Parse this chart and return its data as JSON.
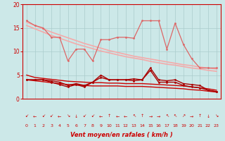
{
  "x": [
    0,
    1,
    2,
    3,
    4,
    5,
    6,
    7,
    8,
    9,
    10,
    11,
    12,
    13,
    14,
    15,
    16,
    17,
    18,
    19,
    20,
    21,
    22,
    23
  ],
  "line_pink_jagged": [
    16.5,
    15.5,
    15.0,
    13.0,
    13.0,
    8.0,
    10.5,
    10.5,
    8.0,
    12.5,
    12.5,
    13.0,
    13.0,
    12.8,
    16.5,
    16.5,
    16.5,
    10.5,
    16.0,
    11.5,
    8.5,
    6.5,
    6.5,
    6.5
  ],
  "line_trend_upper": [
    16.2,
    15.5,
    14.8,
    14.1,
    13.5,
    12.9,
    12.3,
    11.7,
    11.2,
    10.7,
    10.2,
    9.8,
    9.4,
    9.0,
    8.7,
    8.4,
    8.1,
    7.8,
    7.5,
    7.2,
    7.0,
    6.7,
    6.5,
    6.3
  ],
  "line_trend_lower": [
    15.5,
    14.8,
    14.1,
    13.4,
    12.8,
    12.2,
    11.6,
    11.1,
    10.6,
    10.1,
    9.7,
    9.3,
    8.9,
    8.6,
    8.3,
    7.9,
    7.6,
    7.3,
    7.1,
    6.8,
    6.5,
    6.3,
    6.0,
    5.8
  ],
  "line_red_trend_upper": [
    5.0,
    4.5,
    4.3,
    4.1,
    3.9,
    3.7,
    3.6,
    3.5,
    3.4,
    3.4,
    3.3,
    3.3,
    3.2,
    3.2,
    3.2,
    3.1,
    3.0,
    2.9,
    2.8,
    2.7,
    2.5,
    2.3,
    2.1,
    1.8
  ],
  "line_red_trend_lower": [
    4.0,
    3.8,
    3.6,
    3.4,
    3.2,
    3.0,
    2.9,
    2.8,
    2.7,
    2.7,
    2.7,
    2.7,
    2.6,
    2.6,
    2.6,
    2.5,
    2.4,
    2.3,
    2.2,
    2.1,
    1.9,
    1.8,
    1.6,
    1.4
  ],
  "line_red_jagged1": [
    4.0,
    4.0,
    4.0,
    3.8,
    3.5,
    2.8,
    3.2,
    2.8,
    3.5,
    5.0,
    4.0,
    4.0,
    4.0,
    4.2,
    4.0,
    6.5,
    4.0,
    3.8,
    4.0,
    3.2,
    3.0,
    2.8,
    1.8,
    1.5
  ],
  "line_red_jagged2": [
    4.0,
    4.0,
    4.0,
    3.5,
    3.0,
    2.5,
    3.0,
    2.5,
    3.5,
    4.5,
    4.0,
    4.0,
    4.0,
    3.8,
    4.0,
    6.0,
    3.5,
    3.5,
    3.5,
    2.8,
    2.5,
    2.3,
    1.8,
    1.5
  ],
  "arrows": [
    "↙",
    "←",
    "↙",
    "↙",
    "←",
    "↘",
    "↓",
    "↙",
    "↙",
    "←",
    "↑",
    "←",
    "←",
    "↖",
    "↑",
    "→",
    "→",
    "↖",
    "↖",
    "↗",
    "→",
    "↑",
    "↓",
    "↘"
  ],
  "xlabel": "Vent moyen/en rafales ( km/h )",
  "xlim": [
    -0.5,
    23.5
  ],
  "ylim": [
    0,
    20
  ],
  "yticks": [
    0,
    5,
    10,
    15,
    20
  ],
  "xticks": [
    0,
    1,
    2,
    3,
    4,
    5,
    6,
    7,
    8,
    9,
    10,
    11,
    12,
    13,
    14,
    15,
    16,
    17,
    18,
    19,
    20,
    21,
    22,
    23
  ],
  "bg_color": "#cce8e8",
  "grid_color": "#aacccc",
  "color_light_pink": "#f4aaaa",
  "color_pink": "#dd6666",
  "color_red": "#cc0000",
  "color_dark_red": "#aa0000"
}
